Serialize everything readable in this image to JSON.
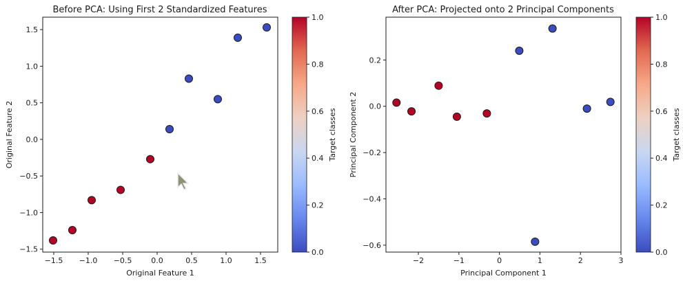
{
  "chart_data": [
    {
      "type": "scatter",
      "title": "Before PCA: Using First 2 Standardized Features",
      "xlabel": "Original Feature 1",
      "ylabel": "Original Feature 2",
      "xlim": [
        -1.66,
        1.75
      ],
      "ylim": [
        -1.54,
        1.67
      ],
      "xticks": [
        -1.5,
        -1.0,
        -0.5,
        0.0,
        0.5,
        1.0,
        1.5
      ],
      "xtick_labels": [
        "−1.5",
        "−1.0",
        "−0.5",
        "0.0",
        "0.5",
        "1.0",
        "1.5"
      ],
      "yticks": [
        -1.5,
        -1.0,
        -0.5,
        0.0,
        0.5,
        1.0,
        1.5
      ],
      "ytick_labels": [
        "−1.5",
        "−1.0",
        "−0.5",
        "0.0",
        "0.5",
        "1.0",
        "1.5"
      ],
      "grid": false,
      "points": [
        {
          "x": -1.51,
          "y": -1.38,
          "class": 1
        },
        {
          "x": -1.23,
          "y": -1.24,
          "class": 1
        },
        {
          "x": -0.95,
          "y": -0.83,
          "class": 1
        },
        {
          "x": -0.53,
          "y": -0.69,
          "class": 1
        },
        {
          "x": -0.1,
          "y": -0.27,
          "class": 1
        },
        {
          "x": 0.18,
          "y": 0.14,
          "class": 0
        },
        {
          "x": 0.46,
          "y": 0.83,
          "class": 0
        },
        {
          "x": 0.88,
          "y": 0.55,
          "class": 0
        },
        {
          "x": 1.17,
          "y": 1.39,
          "class": 0
        },
        {
          "x": 1.59,
          "y": 1.53,
          "class": 0
        }
      ],
      "colorbar": {
        "label": "Target classes",
        "range": [
          0.0,
          1.0
        ],
        "ticks": [
          0.0,
          0.2,
          0.4,
          0.6,
          0.8,
          1.0
        ],
        "tick_labels": [
          "0.0",
          "0.2",
          "0.4",
          "0.6",
          "0.8",
          "1.0"
        ],
        "colormap": "coolwarm"
      }
    },
    {
      "type": "scatter",
      "title": "After PCA: Projected onto 2 Principal Components",
      "xlabel": "Principal Component 1",
      "ylabel": "Principal Component 2",
      "xlim": [
        -2.8,
        3.0
      ],
      "ylim": [
        -0.63,
        0.385
      ],
      "xticks": [
        -2,
        -1,
        0,
        1,
        2,
        3
      ],
      "xtick_labels": [
        "−2",
        "−1",
        "0",
        "1",
        "2",
        "3"
      ],
      "yticks": [
        -0.6,
        -0.4,
        -0.2,
        0.0,
        0.2
      ],
      "ytick_labels": [
        "−0.6",
        "−0.4",
        "−0.2",
        "0.0",
        "0.2"
      ],
      "grid": false,
      "points": [
        {
          "x": -2.54,
          "y": 0.016,
          "class": 1
        },
        {
          "x": -2.17,
          "y": -0.022,
          "class": 1
        },
        {
          "x": -1.5,
          "y": 0.089,
          "class": 1
        },
        {
          "x": -1.05,
          "y": -0.045,
          "class": 1
        },
        {
          "x": -0.31,
          "y": -0.031,
          "class": 1
        },
        {
          "x": 0.49,
          "y": 0.24,
          "class": 0
        },
        {
          "x": 1.31,
          "y": 0.336,
          "class": 0
        },
        {
          "x": 2.16,
          "y": -0.01,
          "class": 0
        },
        {
          "x": 2.74,
          "y": 0.019,
          "class": 0
        },
        {
          "x": 0.88,
          "y": -0.585,
          "class": 0
        }
      ],
      "colorbar": {
        "label": "Target classes",
        "range": [
          0.0,
          1.0
        ],
        "ticks": [
          0.0,
          0.2,
          0.4,
          0.6,
          0.8,
          1.0
        ],
        "tick_labels": [
          "0.0",
          "0.2",
          "0.4",
          "0.6",
          "0.8",
          "1.0"
        ],
        "colormap": "coolwarm"
      }
    }
  ],
  "colors": {
    "class_0": "#3b4cc0",
    "class_1": "#b40426",
    "colormap_stops": [
      "#3b4cc0",
      "#6788ee",
      "#9abbff",
      "#c9d7f0",
      "#edd1c2",
      "#f7a889",
      "#e26952",
      "#b40426"
    ]
  },
  "cursor": {
    "icon": "mouse-pointer-icon"
  }
}
